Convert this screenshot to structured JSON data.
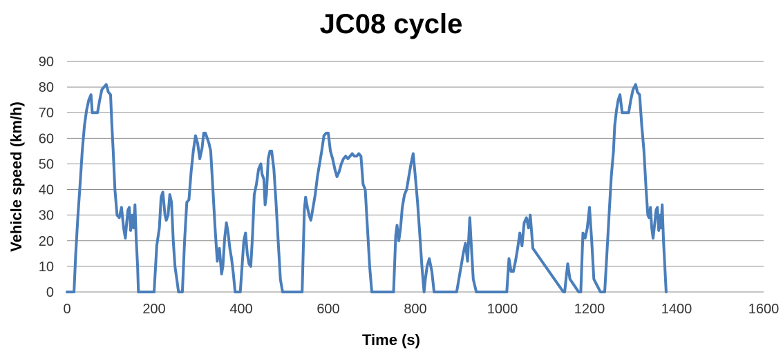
{
  "chart_data": {
    "type": "line",
    "title": "JC08  cycle",
    "xlabel": "Time (s)",
    "ylabel": "Vehicle speed (km/h)",
    "xlim": [
      0,
      1600
    ],
    "ylim": [
      0,
      90
    ],
    "xticks": [
      0,
      200,
      400,
      600,
      800,
      1000,
      1200,
      1400,
      1600
    ],
    "yticks": [
      0,
      10,
      20,
      30,
      40,
      50,
      60,
      70,
      80,
      90
    ],
    "grid": true,
    "legend": "none",
    "series_color": "#4a7ebb",
    "series": [
      {
        "x": [
          0,
          16,
          20,
          25,
          30,
          35,
          40,
          45,
          50,
          55,
          58,
          62,
          66,
          70,
          75,
          80,
          85,
          90,
          95,
          100,
          103,
          106,
          110,
          115,
          120,
          125,
          130,
          134,
          137,
          140,
          143,
          146,
          150,
          153,
          156,
          159,
          162,
          164,
          167,
          170,
          173,
          176,
          200,
          206,
          212,
          216,
          220,
          225,
          228,
          232,
          236,
          240,
          244,
          248,
          252,
          256,
          260,
          265,
          270,
          275,
          280,
          285,
          290,
          295,
          300,
          305,
          310,
          314,
          318,
          322,
          326,
          330,
          335,
          340,
          345,
          350,
          355,
          358,
          362,
          366,
          370,
          374,
          378,
          382,
          386,
          390,
          394,
          398,
          406,
          410,
          414,
          418,
          422,
          426,
          430,
          435,
          440,
          445,
          448,
          452,
          455,
          458,
          462,
          466,
          470,
          475,
          480,
          485,
          490,
          495,
          500,
          505,
          510,
          512,
          540,
          545,
          548,
          552,
          556,
          560,
          565,
          570,
          575,
          580,
          585,
          590,
          595,
          600,
          605,
          610,
          615,
          620,
          625,
          630,
          635,
          640,
          645,
          650,
          655,
          660,
          665,
          670,
          675,
          680,
          685,
          690,
          695,
          700,
          705,
          750,
          755,
          758,
          762,
          766,
          770,
          775,
          780,
          785,
          790,
          795,
          800,
          805,
          810,
          815,
          820,
          823,
          827,
          832,
          838,
          843,
          848,
          895,
          900,
          905,
          910,
          915,
          920,
          925,
          928,
          933,
          940,
          1010,
          1015,
          1020,
          1025,
          1030,
          1035,
          1040,
          1045,
          1050,
          1055,
          1060,
          1064,
          1070,
          1140,
          1143,
          1146,
          1150,
          1155,
          1175,
          1180,
          1185,
          1190,
          1195,
          1200,
          1205,
          1210,
          1225,
          1230,
          1235,
          1240,
          1245,
          1250,
          1255,
          1258,
          1262,
          1266,
          1270,
          1275,
          1280,
          1285,
          1290,
          1295,
          1300,
          1303,
          1306,
          1310,
          1315,
          1320,
          1325,
          1330,
          1334,
          1337,
          1340,
          1343,
          1346,
          1350,
          1353,
          1356,
          1359,
          1362,
          1364,
          1367,
          1370,
          1373,
          1376
        ],
        "y": [
          0,
          0,
          15,
          30,
          42,
          55,
          65,
          71,
          75,
          77,
          70,
          70,
          70,
          70,
          75,
          79,
          80,
          81,
          78,
          77,
          65,
          55,
          40,
          30,
          29,
          33,
          25,
          21,
          27,
          32,
          33,
          24,
          30,
          25,
          34,
          20,
          10,
          0,
          0,
          0,
          0,
          0,
          0,
          18,
          25,
          37,
          39,
          30,
          28,
          30,
          38,
          35,
          20,
          10,
          5,
          0,
          0,
          0,
          20,
          35,
          36,
          47,
          55,
          61,
          58,
          52,
          56,
          62,
          62,
          60,
          58,
          55,
          40,
          25,
          12,
          17,
          7,
          10,
          21,
          27,
          23,
          17,
          13,
          7,
          0,
          0,
          0,
          0,
          20,
          23,
          15,
          11,
          10,
          22,
          38,
          42,
          48,
          50,
          46,
          44,
          34,
          38,
          52,
          55,
          55,
          48,
          35,
          20,
          5,
          0,
          0,
          0,
          0,
          0,
          0,
          32,
          37,
          33,
          30,
          28,
          33,
          38,
          45,
          50,
          55,
          61,
          62,
          62,
          55,
          52,
          48,
          45,
          47,
          50,
          52,
          53,
          52,
          53,
          54,
          53,
          53,
          54,
          53,
          42,
          40,
          25,
          10,
          0,
          0,
          0,
          22,
          26,
          20,
          25,
          33,
          38,
          40,
          45,
          50,
          54,
          45,
          35,
          23,
          10,
          0,
          5,
          10,
          13,
          8,
          0,
          0,
          0,
          5,
          10,
          15,
          19,
          12,
          29,
          20,
          5,
          0,
          0,
          13,
          8,
          8,
          12,
          17,
          23,
          18,
          27,
          29,
          25,
          30,
          17,
          0,
          0,
          5,
          11,
          5,
          0,
          0,
          23,
          21,
          25,
          33,
          20,
          5,
          0,
          0,
          0,
          15,
          30,
          45,
          55,
          65,
          71,
          75,
          77,
          70,
          70,
          70,
          70,
          75,
          79,
          80,
          81,
          78,
          77,
          65,
          55,
          40,
          30,
          29,
          33,
          25,
          21,
          27,
          32,
          33,
          24,
          30,
          25,
          34,
          20,
          10,
          0
        ]
      }
    ]
  }
}
